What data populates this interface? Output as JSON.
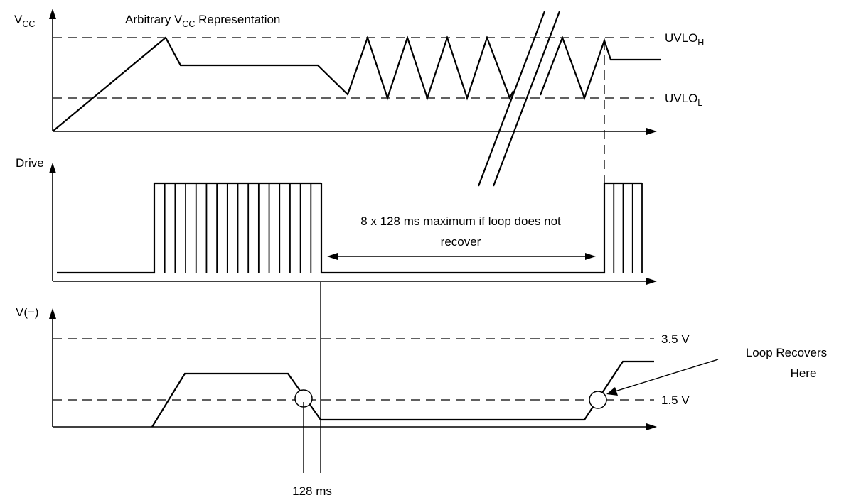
{
  "panels": {
    "vcc": {
      "axis_label_main": "V",
      "axis_label_sub": "CC",
      "annotation_main": "Arbitrary V",
      "annotation_sub": "CC",
      "annotation_rest": " Representation",
      "threshold_high_main": "UVLO",
      "threshold_high_sub": "H",
      "threshold_low_main": "UVLO",
      "threshold_low_sub": "L"
    },
    "drive": {
      "axis_label": "Drive",
      "dimension_text_line1": "8 x 128 ms maximum if loop does not",
      "dimension_text_line2": "recover"
    },
    "vminus": {
      "axis_label": "V(−)",
      "level_high": "3.5 V",
      "level_low": "1.5 V",
      "callout_line1": "Loop Recovers",
      "callout_line2": "Here",
      "timing_label": "128 ms"
    }
  }
}
